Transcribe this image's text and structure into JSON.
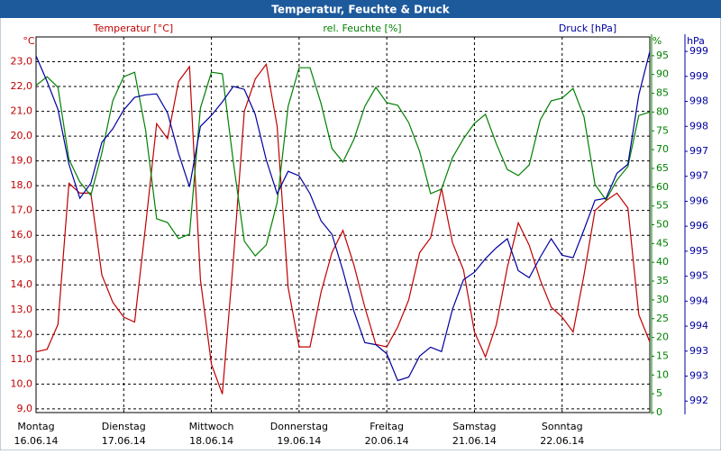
{
  "chart_data": {
    "type": "line",
    "title": "Temperatur, Feuchte & Druck",
    "x": [
      0,
      3,
      6,
      9,
      12,
      15,
      18,
      21,
      24,
      27,
      30,
      33,
      36,
      39,
      42,
      45,
      48,
      51,
      54,
      57,
      60,
      63,
      66,
      69,
      72,
      75,
      78,
      81,
      84,
      87,
      90,
      93,
      96,
      99,
      102,
      105,
      108,
      111,
      114,
      117,
      120,
      123,
      126,
      129,
      132,
      135,
      138,
      141,
      144,
      147,
      150,
      153,
      156,
      159,
      162,
      165,
      168
    ],
    "xlim": [
      0,
      168
    ],
    "xticks": [
      {
        "value": 0,
        "label": "Montag",
        "sublabel": "16.06.14"
      },
      {
        "value": 24,
        "label": "Dienstag",
        "sublabel": "17.06.14"
      },
      {
        "value": 48,
        "label": "Mittwoch",
        "sublabel": "18.06.14"
      },
      {
        "value": 72,
        "label": "Donnerstag",
        "sublabel": "19.06.14"
      },
      {
        "value": 96,
        "label": "Freitag",
        "sublabel": "20.06.14"
      },
      {
        "value": 120,
        "label": "Samstag",
        "sublabel": "21.06.14"
      },
      {
        "value": 144,
        "label": "Sonntag",
        "sublabel": "22.06.14"
      }
    ],
    "y_unit": "°C",
    "y2_unit": "%",
    "y3_unit": "hPa",
    "ylim": [
      8.85,
      24.0
    ],
    "yticks": [
      {
        "value": 9,
        "label": "9,0"
      },
      {
        "value": 10,
        "label": "10,0"
      },
      {
        "value": 11,
        "label": "11,0"
      },
      {
        "value": 12,
        "label": "12,0"
      },
      {
        "value": 13,
        "label": "13,0"
      },
      {
        "value": 14,
        "label": "14,0"
      },
      {
        "value": 15,
        "label": "15,0"
      },
      {
        "value": 16,
        "label": "16,0"
      },
      {
        "value": 17,
        "label": "17,0"
      },
      {
        "value": 18,
        "label": "18,0"
      },
      {
        "value": 19,
        "label": "19,0"
      },
      {
        "value": 20,
        "label": "20,0"
      },
      {
        "value": 21,
        "label": "21,0"
      },
      {
        "value": 22,
        "label": "22,0"
      },
      {
        "value": 23,
        "label": "23,0"
      }
    ],
    "y2lim": [
      0,
      100
    ],
    "y2ticks": [
      0,
      5,
      10,
      15,
      20,
      25,
      30,
      35,
      40,
      45,
      50,
      55,
      60,
      65,
      70,
      75,
      80,
      85,
      90,
      95
    ],
    "y3lim": [
      992.27,
      999.79
    ],
    "y3ticks": [
      {
        "value": 999.5,
        "label": "999"
      },
      {
        "value": 999,
        "label": "999"
      },
      {
        "value": 998.5,
        "label": "998"
      },
      {
        "value": 998,
        "label": "998"
      },
      {
        "value": 997.5,
        "label": "997"
      },
      {
        "value": 997,
        "label": "997"
      },
      {
        "value": 996.5,
        "label": "996"
      },
      {
        "value": 996,
        "label": "996"
      },
      {
        "value": 995.5,
        "label": "995"
      },
      {
        "value": 995,
        "label": "995"
      },
      {
        "value": 994.5,
        "label": "994"
      },
      {
        "value": 994,
        "label": "994"
      },
      {
        "value": 993.5,
        "label": "993"
      },
      {
        "value": 993,
        "label": "993"
      },
      {
        "value": 992.5,
        "label": "992"
      }
    ],
    "grid": true,
    "series": [
      {
        "name": "Temperatur [°C]",
        "color": "#c00000",
        "axis": "y",
        "values": [
          11.3,
          11.4,
          12.4,
          18.1,
          17.7,
          17.7,
          14.4,
          13.3,
          12.7,
          12.5,
          16.4,
          20.5,
          19.9,
          22.2,
          22.8,
          14.2,
          10.8,
          9.6,
          15.0,
          21.0,
          22.3,
          22.9,
          20.4,
          13.9,
          11.5,
          11.5,
          13.7,
          15.3,
          16.2,
          14.8,
          13.1,
          11.6,
          11.5,
          12.3,
          13.4,
          15.3,
          15.9,
          17.9,
          15.7,
          14.6,
          12.1,
          11.1,
          12.4,
          14.7,
          16.5,
          15.6,
          14.2,
          13.1,
          12.7,
          12.1,
          14.4,
          17.0,
          17.4,
          17.7,
          17.1,
          12.8,
          11.7
        ]
      },
      {
        "name": "rel. Feuchte [%]",
        "color": "#008000",
        "axis": "y2",
        "values": [
          87.1,
          89.4,
          86.6,
          67.4,
          61.4,
          57.8,
          69.1,
          83.0,
          89.4,
          90.6,
          75.1,
          51.6,
          50.6,
          46.3,
          47.5,
          81.1,
          90.6,
          90.2,
          66.7,
          45.6,
          41.7,
          44.6,
          55.9,
          81.5,
          91.8,
          91.8,
          82.3,
          70.3,
          66.7,
          72.7,
          81.5,
          86.6,
          82.5,
          81.8,
          77.2,
          69.5,
          58.3,
          59.5,
          67.9,
          72.9,
          77.0,
          79.4,
          71.5,
          64.7,
          63.1,
          65.9,
          77.9,
          83.0,
          83.7,
          86.3,
          78.7,
          60.7,
          56.6,
          61.9,
          65.5,
          79.1,
          80.0
        ]
      },
      {
        "name": "Druck [hPa]",
        "color": "#0000a0",
        "axis": "y3",
        "values": [
          999.41,
          998.9,
          998.34,
          997.24,
          996.56,
          996.86,
          997.68,
          997.95,
          998.33,
          998.58,
          998.63,
          998.65,
          998.27,
          997.46,
          996.79,
          998.0,
          998.22,
          998.49,
          998.8,
          998.74,
          998.24,
          997.33,
          996.65,
          997.1,
          997.01,
          996.65,
          996.11,
          995.84,
          995.11,
          994.3,
          993.67,
          993.63,
          993.45,
          992.91,
          992.98,
          993.4,
          993.58,
          993.49,
          994.34,
          994.93,
          995.08,
          995.35,
          995.57,
          995.75,
          995.11,
          994.97,
          995.38,
          995.75,
          995.42,
          995.37,
          995.93,
          996.52,
          996.56,
          997.06,
          997.24,
          998.63,
          999.5
        ]
      }
    ]
  }
}
